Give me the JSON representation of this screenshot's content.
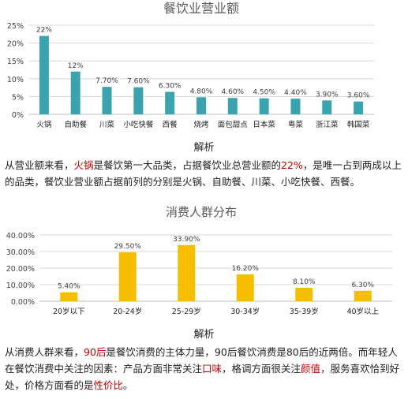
{
  "chart_data": [
    {
      "type": "bar",
      "title": "餐饮业营业额",
      "categories": [
        "火锅",
        "自助餐",
        "川菜",
        "小吃快餐",
        "西餐",
        "烧烤",
        "面包甜点",
        "日本菜",
        "粤菜",
        "浙江菜",
        "韩国菜"
      ],
      "values": [
        22,
        12,
        7.7,
        7.6,
        6.3,
        4.8,
        4.6,
        4.5,
        4.4,
        3.9,
        3.6
      ],
      "data_labels": [
        "22%",
        "12%",
        "7.70%",
        "7.60%",
        "6.30%",
        "4.80%",
        "4.60%",
        "4.50%",
        "4.40%",
        "3.90%",
        "3.60%"
      ],
      "yticks": [
        "0%",
        "5%",
        "10%",
        "15%",
        "20%",
        "25%"
      ],
      "ylim": [
        0,
        25
      ],
      "color": "#3aa3ad",
      "grid": true
    },
    {
      "type": "bar",
      "title": "消费人群分布",
      "categories": [
        "20岁以下",
        "20-24岁",
        "25-29岁",
        "30-34岁",
        "35-39岁",
        "40岁以上"
      ],
      "values": [
        5.4,
        29.5,
        33.9,
        16.2,
        8.1,
        6.3
      ],
      "data_labels": [
        "5.40%",
        "29.50%",
        "33.90%",
        "16.20%",
        "8.10%",
        "6.30%"
      ],
      "yticks": [
        "0.00%",
        "10.00%",
        "20.00%",
        "30.00%",
        "40.00%"
      ],
      "ylim": [
        0,
        40
      ],
      "color": "#f5be00",
      "grid": true
    }
  ],
  "sections": [
    {
      "caption": "解析",
      "text": {
        "p1": "从营业额来看，",
        "h1": "火锅",
        "p2": "是餐饮第一大品类，占据餐饮业总营业额的",
        "h2": "22%",
        "p3": "，是唯一占到两成以上的品类，餐饮业营业额占据前列的分别是火锅、自助餐、川菜、小吃快餐、西餐。"
      }
    },
    {
      "caption": "解析",
      "text": {
        "p1": "从消费人群来看，",
        "h1": "90后",
        "p2": "是餐饮消费的主体力量，90后餐饮消费是80后的近两倍。而年轻人在餐饮消费中关注的因素：产品方面非常关注",
        "h2": "口味",
        "p3": "，格调方面很关注",
        "h3": "颜值",
        "p4": "，服务喜欢恰到好处，价格方面看的是",
        "h4": "性价比",
        "p5": "。"
      }
    }
  ],
  "colors": {
    "highlight": "#c00000",
    "grid": "#d9d9d9",
    "axis": "#bfbfbf"
  }
}
